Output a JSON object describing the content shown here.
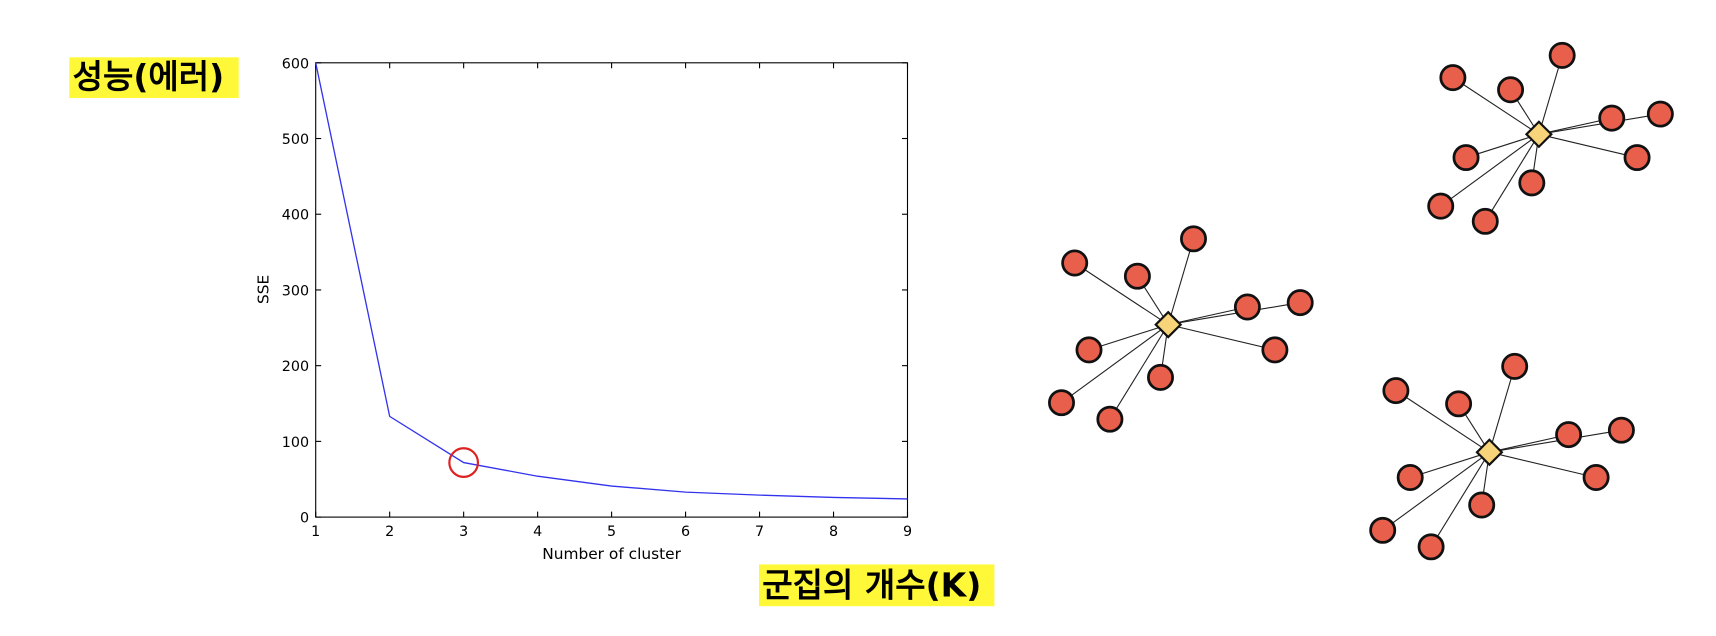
{
  "chart_data": {
    "type": "line",
    "annotations": [
      "성능(에러)",
      "군집의 개수(K)"
    ],
    "x_label": "Number of cluster",
    "y_label": "SSE",
    "x": [
      1,
      2,
      3,
      4,
      5,
      6,
      7,
      8,
      9
    ],
    "series": [
      {
        "color": "#3333ee",
        "values": [
          600,
          133,
          72,
          54,
          41,
          33,
          29,
          26,
          24
        ]
      }
    ],
    "highlight_index": 2,
    "highlight_color": "#dd2222",
    "xlim": [
      1,
      9
    ],
    "ylim": [
      0,
      600
    ],
    "xticks": [
      1,
      2,
      3,
      4,
      5,
      6,
      7,
      8,
      9
    ],
    "yticks": [
      0,
      100,
      200,
      300,
      400,
      500,
      600
    ]
  }
}
